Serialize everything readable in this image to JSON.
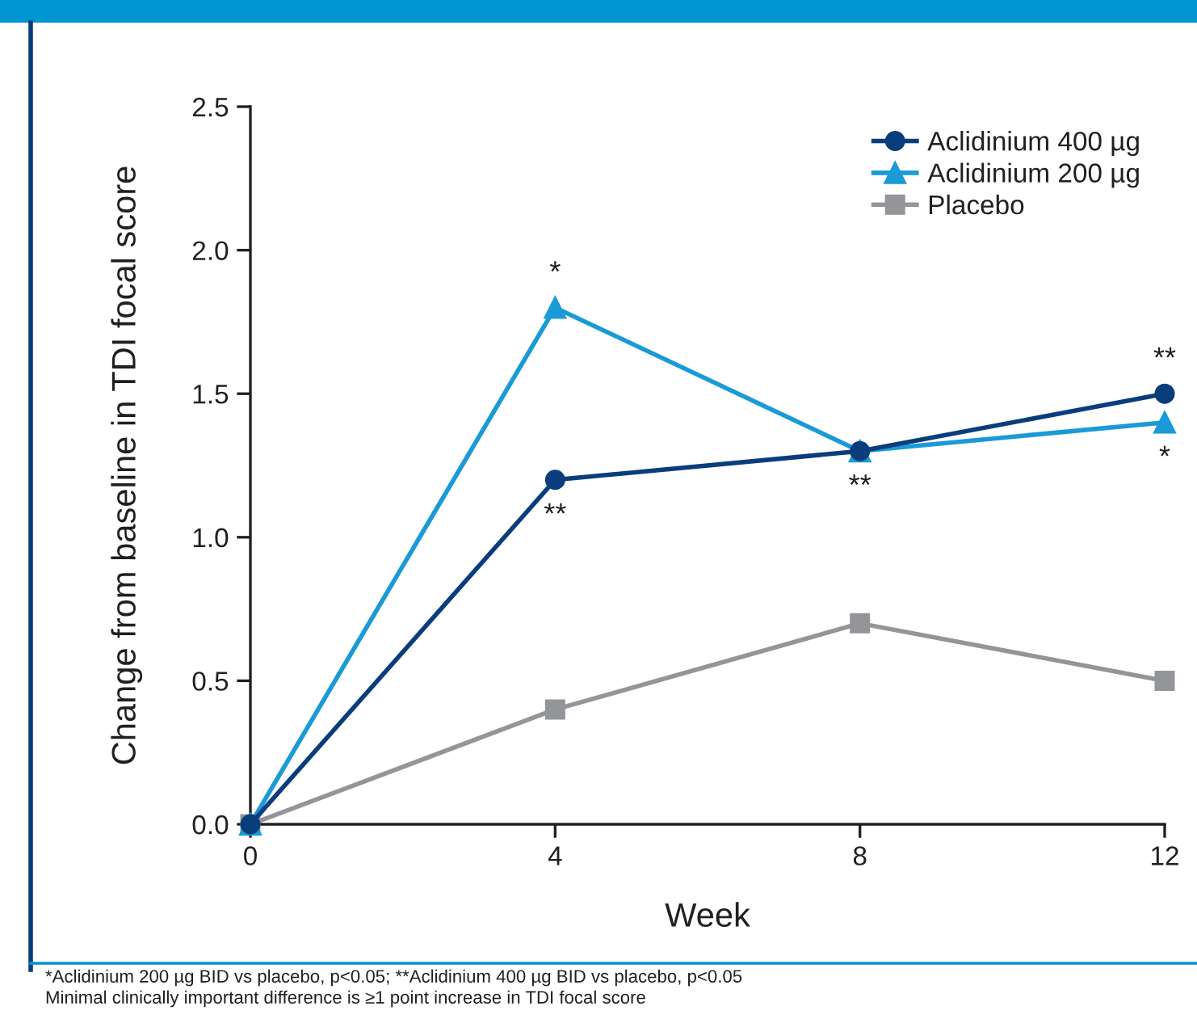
{
  "chart_data": {
    "type": "line",
    "xlabel": "Week",
    "ylabel": "Change from baseline in TDI focal score",
    "x": [
      0,
      4,
      8,
      12
    ],
    "series": [
      {
        "name": "Aclidinium 400 µg",
        "color": "#0a3d7c",
        "marker": "circle",
        "values": [
          0,
          1.2,
          1.3,
          1.5
        ]
      },
      {
        "name": "Aclidinium 200 µg",
        "color": "#1a9ad6",
        "marker": "triangle",
        "values": [
          0,
          1.8,
          1.3,
          1.4
        ]
      },
      {
        "name": "Placebo",
        "color": "#939598",
        "marker": "square",
        "values": [
          0,
          0.4,
          0.7,
          0.5
        ]
      }
    ],
    "xlim": [
      0,
      12
    ],
    "xticks": [
      0,
      4,
      8,
      12
    ],
    "ylim": [
      0,
      2.5
    ],
    "yticks": [
      {
        "value": 0,
        "label": "0.0"
      },
      {
        "value": 0.5,
        "label": "0.5"
      },
      {
        "value": 1,
        "label": "1.0"
      },
      {
        "value": 1.5,
        "label": "1.5"
      },
      {
        "value": 2,
        "label": "2.0"
      },
      {
        "value": 2.5,
        "label": "2.5"
      }
    ],
    "grid": false,
    "legend": "top right",
    "line_style": "solid",
    "annotations": [
      {
        "text": "*",
        "x": 4,
        "y": 1.8
      },
      {
        "text": "**",
        "x": 4,
        "y": 1.2
      },
      {
        "text": "**",
        "x": 8,
        "y": 1.3
      },
      {
        "text": "**",
        "x": 12,
        "y": 1.5
      },
      {
        "text": "*",
        "x": 12,
        "y": 1.4
      },
      "*Aclidinium 200 µg BID vs placebo, p<0.05; **Aclidinium 400 µg BID vs placebo, p<0.05",
      "Minimal clinically important difference is ≥1 point increase in TDI focal score"
    ]
  }
}
